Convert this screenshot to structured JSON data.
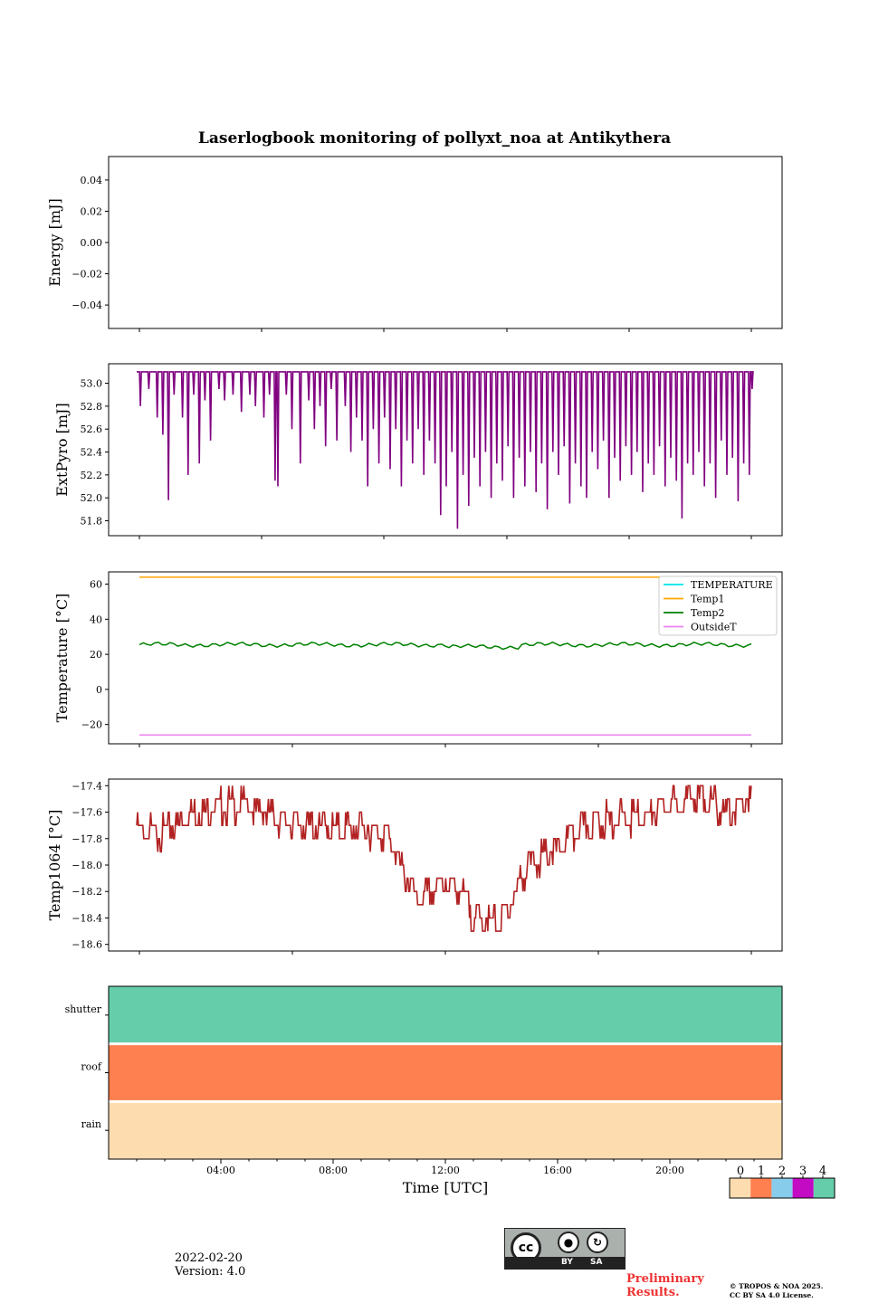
{
  "title": "Laserlogbook monitoring of pollyxt_noa at Antikythera",
  "footer": {
    "date": "2022-02-20",
    "version": "Version: 4.0",
    "preliminary_line1": "Preliminary",
    "preliminary_line2": "Results.",
    "copyright_line1": "© TROPOS & NOA 2025.",
    "copyright_line2": "CC BY SA 4.0 License.",
    "license_badge": {
      "cc": "cc",
      "by": "BY",
      "sa": "SA"
    }
  },
  "colorbar": {
    "ticks": [
      "0",
      "1",
      "2",
      "3",
      "4"
    ],
    "colors": [
      "#fdddaf",
      "#fe7f4f",
      "#87cceb",
      "#c20bc3",
      "#66cdab"
    ]
  },
  "chart_data": [
    {
      "type": "line",
      "ylabel": "Energy [mJ]",
      "ylim": [
        -0.055,
        0.055
      ],
      "yticks": [
        0.04,
        0.02,
        0.0,
        -0.02,
        -0.04
      ],
      "ytick_labels": [
        "0.04",
        "0.02",
        "0.00",
        "−0.02",
        "−0.04"
      ],
      "series": []
    },
    {
      "type": "line",
      "ylabel": "ExtPyro [mJ]",
      "ylim": [
        51.67,
        53.17
      ],
      "yticks": [
        53.0,
        52.8,
        52.6,
        52.4,
        52.2,
        52.0,
        51.8
      ],
      "ytick_labels": [
        "53.0",
        "52.8",
        "52.6",
        "52.4",
        "52.2",
        "52.0",
        "51.8"
      ],
      "x_range_hours": [
        1.0,
        22.9
      ],
      "color": "#800080",
      "baseline": 53.1,
      "spikes": [
        [
          1.1,
          52.8
        ],
        [
          1.4,
          52.95
        ],
        [
          1.7,
          52.7
        ],
        [
          1.9,
          52.55
        ],
        [
          2.1,
          51.98
        ],
        [
          2.3,
          52.9
        ],
        [
          2.6,
          52.7
        ],
        [
          2.8,
          52.2
        ],
        [
          3.0,
          52.9
        ],
        [
          3.2,
          52.3
        ],
        [
          3.4,
          52.85
        ],
        [
          3.6,
          52.5
        ],
        [
          3.9,
          52.95
        ],
        [
          4.1,
          52.85
        ],
        [
          4.4,
          52.9
        ],
        [
          4.7,
          52.75
        ],
        [
          5.0,
          52.9
        ],
        [
          5.2,
          52.8
        ],
        [
          5.5,
          52.7
        ],
        [
          5.7,
          52.9
        ],
        [
          5.9,
          52.15
        ],
        [
          6.0,
          52.1
        ],
        [
          6.3,
          52.9
        ],
        [
          6.5,
          52.6
        ],
        [
          6.8,
          52.3
        ],
        [
          7.1,
          52.85
        ],
        [
          7.3,
          52.6
        ],
        [
          7.5,
          52.8
        ],
        [
          7.7,
          52.45
        ],
        [
          7.9,
          52.95
        ],
        [
          8.1,
          52.5
        ],
        [
          8.4,
          52.8
        ],
        [
          8.6,
          52.4
        ],
        [
          8.8,
          52.7
        ],
        [
          9.0,
          52.5
        ],
        [
          9.2,
          52.1
        ],
        [
          9.4,
          52.6
        ],
        [
          9.6,
          52.3
        ],
        [
          9.8,
          52.7
        ],
        [
          10.0,
          52.25
        ],
        [
          10.2,
          52.6
        ],
        [
          10.4,
          52.1
        ],
        [
          10.6,
          52.5
        ],
        [
          10.8,
          52.3
        ],
        [
          11.0,
          52.6
        ],
        [
          11.2,
          52.2
        ],
        [
          11.4,
          52.5
        ],
        [
          11.6,
          52.3
        ],
        [
          11.8,
          51.85
        ],
        [
          12.0,
          52.1
        ],
        [
          12.2,
          52.4
        ],
        [
          12.4,
          51.73
        ],
        [
          12.6,
          52.2
        ],
        [
          12.8,
          51.93
        ],
        [
          13.0,
          52.35
        ],
        [
          13.2,
          52.1
        ],
        [
          13.4,
          52.4
        ],
        [
          13.6,
          52.0
        ],
        [
          13.8,
          52.3
        ],
        [
          14.0,
          52.15
        ],
        [
          14.2,
          52.45
        ],
        [
          14.4,
          52.0
        ],
        [
          14.6,
          52.35
        ],
        [
          14.8,
          52.1
        ],
        [
          15.0,
          52.4
        ],
        [
          15.2,
          52.05
        ],
        [
          15.4,
          52.3
        ],
        [
          15.6,
          51.9
        ],
        [
          15.8,
          52.4
        ],
        [
          16.0,
          52.2
        ],
        [
          16.2,
          52.45
        ],
        [
          16.4,
          51.95
        ],
        [
          16.6,
          52.3
        ],
        [
          16.8,
          52.1
        ],
        [
          17.0,
          52.0
        ],
        [
          17.2,
          52.4
        ],
        [
          17.4,
          52.25
        ],
        [
          17.6,
          52.5
        ],
        [
          17.8,
          52.0
        ],
        [
          18.0,
          52.35
        ],
        [
          18.2,
          52.15
        ],
        [
          18.4,
          52.45
        ],
        [
          18.6,
          52.2
        ],
        [
          18.8,
          52.4
        ],
        [
          19.0,
          52.05
        ],
        [
          19.2,
          52.3
        ],
        [
          19.4,
          52.2
        ],
        [
          19.6,
          52.45
        ],
        [
          19.8,
          52.1
        ],
        [
          20.0,
          52.35
        ],
        [
          20.2,
          52.15
        ],
        [
          20.4,
          51.82
        ],
        [
          20.6,
          52.3
        ],
        [
          20.8,
          52.2
        ],
        [
          21.0,
          52.4
        ],
        [
          21.2,
          52.1
        ],
        [
          21.4,
          52.3
        ],
        [
          21.6,
          52.0
        ],
        [
          21.8,
          52.5
        ],
        [
          22.0,
          52.2
        ],
        [
          22.2,
          52.35
        ],
        [
          22.4,
          51.97
        ],
        [
          22.6,
          52.3
        ],
        [
          22.8,
          52.2
        ],
        [
          22.9,
          52.95
        ]
      ]
    },
    {
      "type": "line",
      "ylabel": "Temperature [°C]",
      "ylim": [
        -31,
        67
      ],
      "yticks": [
        60,
        40,
        20,
        0,
        -20
      ],
      "ytick_labels": [
        "60",
        "40",
        "20",
        "0",
        "−20"
      ],
      "legend_position": "top-right",
      "series": [
        {
          "name": "TEMPERATURE",
          "color": "#00e5e5",
          "values": []
        },
        {
          "name": "Temp1",
          "color": "#ffa500",
          "constant": 64
        },
        {
          "name": "Temp2",
          "color": "#008000",
          "mean": 25.5
        },
        {
          "name": "OutsideT",
          "color": "#ee82ee",
          "constant": -26
        }
      ]
    },
    {
      "type": "line",
      "ylabel": "Temp1064 [°C]",
      "ylim": [
        -18.65,
        -17.35
      ],
      "yticks": [
        -17.4,
        -17.6,
        -17.8,
        -18.0,
        -18.2,
        -18.4,
        -18.6
      ],
      "ytick_labels": [
        "−17.4",
        "−17.6",
        "−17.8",
        "−18.0",
        "−18.2",
        "−18.4",
        "−18.6"
      ],
      "color": "#b22222",
      "x": [
        1.0,
        2.0,
        3.0,
        4.0,
        5.0,
        6.0,
        7.0,
        8.0,
        9.0,
        10.0,
        10.5,
        11.0,
        11.5,
        12.0,
        12.5,
        13.0,
        13.5,
        14.0,
        14.5,
        15.0,
        15.5,
        16.0,
        17.0,
        18.0,
        19.0,
        20.0,
        21.0,
        22.0,
        22.9
      ],
      "y": [
        -17.75,
        -17.75,
        -17.6,
        -17.55,
        -17.55,
        -17.65,
        -17.7,
        -17.72,
        -17.72,
        -17.78,
        -18.05,
        -18.28,
        -18.22,
        -18.12,
        -18.18,
        -18.38,
        -18.42,
        -18.45,
        -18.2,
        -17.98,
        -17.95,
        -17.88,
        -17.7,
        -17.65,
        -17.65,
        -17.55,
        -17.48,
        -17.6,
        -17.5
      ]
    },
    {
      "type": "heatmap",
      "rows": [
        "shutter",
        "roof",
        "rain"
      ],
      "row_values": [
        4,
        1,
        0
      ],
      "xlabel": "Time [UTC]",
      "xtick_hours": [
        4,
        8,
        12,
        16,
        20
      ],
      "xtick_labels": [
        "04:00",
        "08:00",
        "12:00",
        "16:00",
        "20:00"
      ],
      "colorbar_ticks": [
        0,
        1,
        2,
        3,
        4
      ]
    }
  ]
}
